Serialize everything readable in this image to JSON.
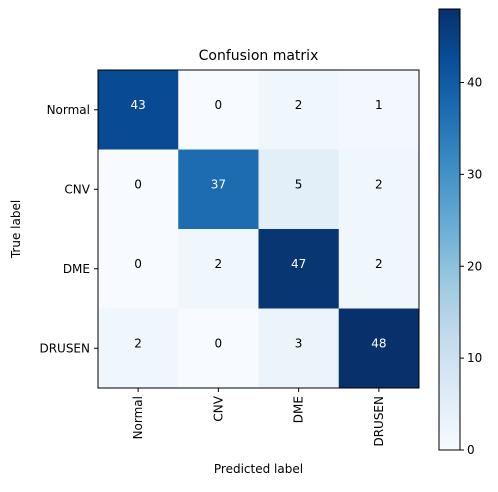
{
  "chart_data": {
    "type": "heatmap",
    "title": "Confusion matrix",
    "xlabel": "Predicted label",
    "ylabel": "True label",
    "x_categories": [
      "Normal",
      "CNV",
      "DME",
      "DRUSEN"
    ],
    "y_categories": [
      "Normal",
      "CNV",
      "DME",
      "DRUSEN"
    ],
    "matrix": [
      [
        43,
        0,
        2,
        1
      ],
      [
        0,
        37,
        5,
        2
      ],
      [
        0,
        2,
        47,
        2
      ],
      [
        2,
        0,
        3,
        48
      ]
    ],
    "colormap": "Blues",
    "colors": {
      "low": "#f7fbff",
      "high": "#08306b"
    },
    "vmin": 0,
    "vmax": 48,
    "colorbar": {
      "ticks": [
        0,
        10,
        20,
        30,
        40
      ],
      "tick_labels": [
        "0",
        "10",
        "20",
        "30",
        "40"
      ]
    },
    "grid": false
  }
}
